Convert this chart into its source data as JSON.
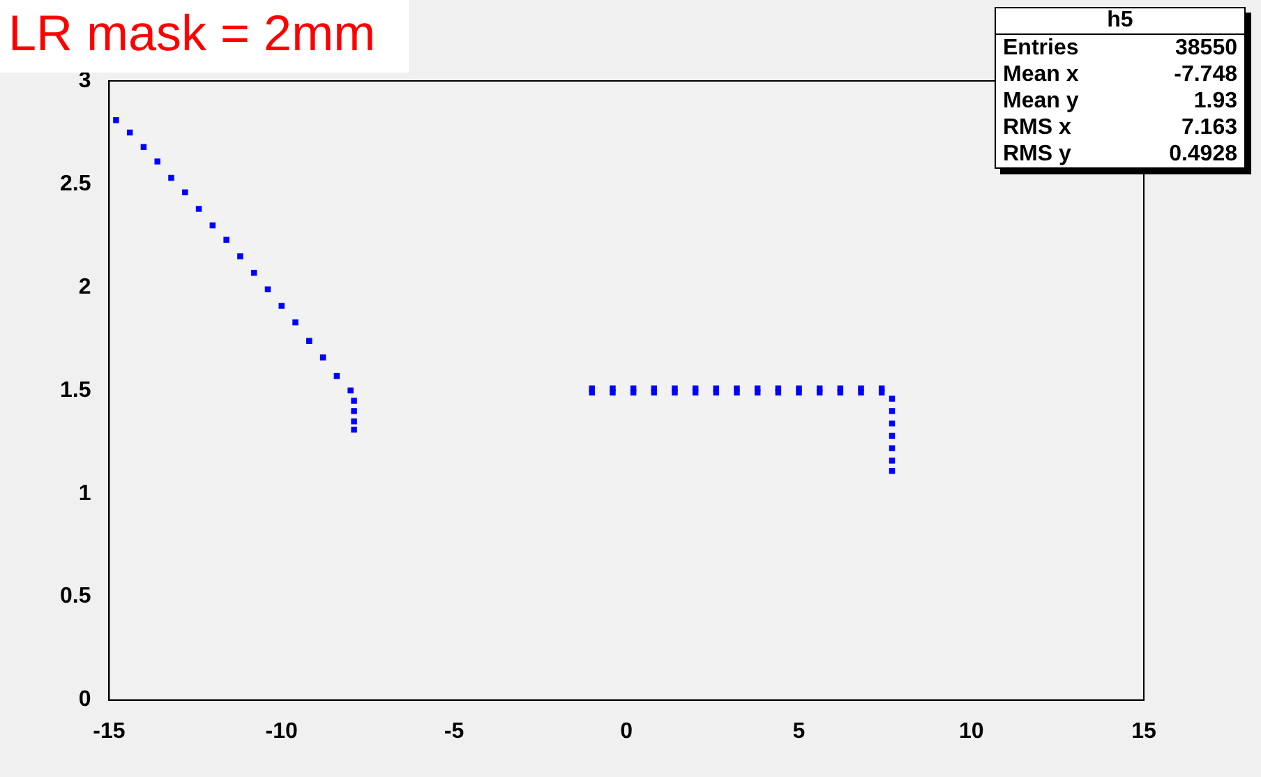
{
  "chart_data": {
    "type": "scatter",
    "title": "LR mask = 2mm",
    "x": [
      -14.8,
      -14.4,
      -14.0,
      -13.6,
      -13.2,
      -12.8,
      -12.4,
      -12.0,
      -11.6,
      -11.2,
      -10.8,
      -10.4,
      -10.0,
      -9.6,
      -9.2,
      -8.8,
      -8.4,
      -8.0,
      -7.9,
      -7.9,
      -7.9,
      -7.9,
      -1.0,
      -0.4,
      0.2,
      0.8,
      1.4,
      2.0,
      2.6,
      3.2,
      3.8,
      4.4,
      5.0,
      5.6,
      6.2,
      6.8,
      7.4,
      -1.0,
      -0.4,
      0.2,
      0.8,
      1.4,
      2.0,
      2.6,
      3.2,
      3.8,
      4.4,
      5.0,
      5.6,
      6.2,
      6.8,
      7.4,
      7.7,
      7.7,
      7.7,
      7.7,
      7.7,
      7.7,
      7.7
    ],
    "values": [
      2.81,
      2.75,
      2.68,
      2.61,
      2.53,
      2.46,
      2.38,
      2.3,
      2.23,
      2.15,
      2.07,
      1.99,
      1.91,
      1.83,
      1.74,
      1.66,
      1.57,
      1.5,
      1.45,
      1.4,
      1.35,
      1.31,
      1.51,
      1.51,
      1.51,
      1.51,
      1.51,
      1.51,
      1.51,
      1.51,
      1.51,
      1.51,
      1.51,
      1.51,
      1.51,
      1.51,
      1.51,
      1.49,
      1.49,
      1.49,
      1.49,
      1.49,
      1.49,
      1.49,
      1.49,
      1.49,
      1.49,
      1.49,
      1.49,
      1.49,
      1.49,
      1.49,
      1.46,
      1.4,
      1.34,
      1.28,
      1.22,
      1.16,
      1.11
    ],
    "color": "#0000ff",
    "marker": "square",
    "xlim": [
      -15,
      15
    ],
    "xticks": [
      -15,
      -10,
      -5,
      0,
      5,
      10,
      15
    ],
    "ylim": [
      0,
      3
    ],
    "yticks": [
      0,
      0.5,
      1,
      1.5,
      2,
      2.5,
      3
    ],
    "grid": false,
    "legend": false,
    "annotations": [
      "h5",
      "Entries",
      "38550",
      "Mean x",
      "-7.748",
      "Mean y",
      "1.93",
      "RMS x",
      "7.163",
      "RMS y",
      "0.4928"
    ]
  }
}
